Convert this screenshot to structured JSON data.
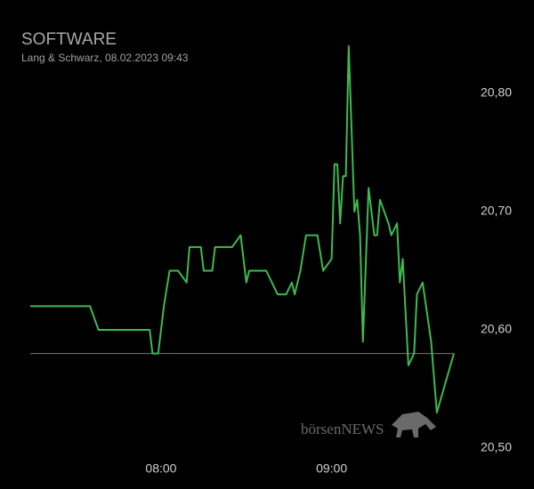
{
  "chart_data": {
    "type": "line",
    "title": "SOFTWARE",
    "subtitle": "Lang & Schwarz, 08.02.2023 09:43",
    "watermark": "börsenNEWS",
    "x": [
      "07:14",
      "07:35",
      "07:38",
      "07:56",
      "07:57",
      "07:59",
      "08:01",
      "08:03",
      "08:06",
      "08:09",
      "08:10",
      "08:14",
      "08:15",
      "08:18",
      "08:19",
      "08:25",
      "08:28",
      "08:30",
      "08:31",
      "08:37",
      "08:41",
      "08:44",
      "08:46",
      "08:47",
      "08:49",
      "08:51",
      "08:55",
      "08:57",
      "09:00",
      "09:01",
      "09:02",
      "09:03",
      "09:04",
      "09:05",
      "09:06",
      "09:08",
      "09:09",
      "09:10",
      "09:11",
      "09:13",
      "09:15",
      "09:16",
      "09:17",
      "09:20",
      "09:21",
      "09:23",
      "09:24",
      "09:25",
      "09:27",
      "09:29",
      "09:30",
      "09:32",
      "09:35",
      "09:37",
      "09:43"
    ],
    "series": [
      {
        "name": "SOFTWARE",
        "color": "#3fb950",
        "values": [
          20.62,
          20.62,
          20.6,
          20.6,
          20.58,
          20.58,
          20.62,
          20.65,
          20.65,
          20.64,
          20.67,
          20.67,
          20.65,
          20.65,
          20.67,
          20.67,
          20.68,
          20.64,
          20.65,
          20.65,
          20.63,
          20.63,
          20.64,
          20.63,
          20.65,
          20.68,
          20.68,
          20.65,
          20.66,
          20.74,
          20.74,
          20.69,
          20.73,
          20.73,
          20.84,
          20.7,
          20.71,
          20.68,
          20.59,
          20.72,
          20.68,
          20.68,
          20.71,
          20.69,
          20.68,
          20.69,
          20.64,
          20.66,
          20.57,
          20.58,
          20.63,
          20.64,
          20.59,
          20.53,
          20.58
        ]
      }
    ],
    "reference_line": 20.58,
    "xlim": [
      "07:14",
      "09:43"
    ],
    "xticks": [
      "08:00",
      "09:00"
    ],
    "ylim": [
      20.49,
      20.85
    ],
    "yticks": [
      {
        "value": 20.5,
        "label": "20,50"
      },
      {
        "value": 20.6,
        "label": "20,60"
      },
      {
        "value": 20.7,
        "label": "20,70"
      },
      {
        "value": 20.8,
        "label": "20,80"
      }
    ]
  }
}
